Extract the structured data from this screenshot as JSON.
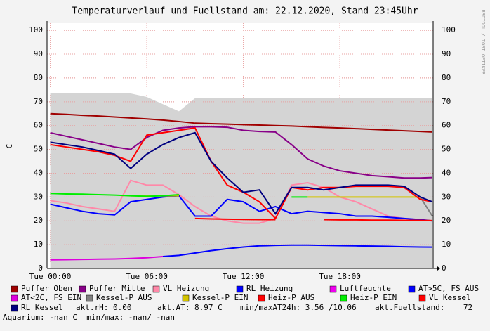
{
  "chart_data": {
    "type": "line",
    "title": "Temperaturverlauf und Fuellstand am: 22.12.2020, Stand 23:45Uhr",
    "ylabel": "C",
    "watermark": "RRDTOOL / TOBI OETIKER",
    "xlim": [
      -0.2,
      23.8
    ],
    "ylim": [
      0,
      103
    ],
    "yticks": [
      0,
      10,
      20,
      30,
      40,
      50,
      60,
      70,
      80,
      90,
      100
    ],
    "xticks": [
      {
        "value": 0,
        "label": "Tue 00:00"
      },
      {
        "value": 6,
        "label": "Tue 06:00"
      },
      {
        "value": 12,
        "label": "Tue 12:00"
      },
      {
        "value": 18,
        "label": "Tue 18:00"
      }
    ],
    "grid": true,
    "x": [
      0,
      1,
      2,
      3,
      4,
      5,
      6,
      7,
      8,
      9,
      10,
      11,
      12,
      13,
      14,
      15,
      16,
      17,
      18,
      19,
      20,
      21,
      22,
      23,
      23.75
    ],
    "series": [
      {
        "type": "area",
        "color": "#d4d4d4",
        "values": [
          73.5,
          73.5,
          73.5,
          73.5,
          73.5,
          73.5,
          72,
          69,
          66,
          71.5,
          71.5,
          71.5,
          71.5,
          71.5,
          71.5,
          71.5,
          71.5,
          71.5,
          71.5,
          71.5,
          71.5,
          71.5,
          71.5,
          71.5,
          71.5
        ]
      },
      {
        "name": "Puffer Oben",
        "color": "#a00000",
        "values": [
          65,
          64.7,
          64.3,
          64,
          63.6,
          63.2,
          62.8,
          62.3,
          61.7,
          61,
          60.8,
          60.6,
          60.4,
          60.2,
          60,
          59.8,
          59.5,
          59.2,
          59,
          58.7,
          58.4,
          58.1,
          57.8,
          57.5,
          57.3
        ]
      },
      {
        "name": "Puffer Mitte",
        "color": "#880088",
        "values": [
          57,
          55.5,
          54,
          52.5,
          51,
          50,
          55,
          58,
          59,
          59.5,
          59.5,
          59.3,
          58,
          57.5,
          57.3,
          52,
          46,
          43,
          41,
          40,
          39,
          38.5,
          38,
          38,
          38.2
        ]
      },
      {
        "name": "VL Heizung",
        "color": "#ff88a8",
        "values": [
          28.5,
          27.5,
          26,
          25,
          24,
          37,
          35,
          35,
          31,
          26,
          22,
          20,
          19,
          19,
          21,
          35,
          36,
          34,
          30,
          28,
          25,
          22,
          21,
          20.5,
          20
        ]
      },
      {
        "name": "RL Heizung",
        "color": "#0000ff",
        "values": [
          27,
          25.5,
          24,
          23,
          22.5,
          28,
          29,
          30,
          30.5,
          22,
          22,
          29,
          28,
          24,
          26,
          23,
          24,
          23.5,
          23,
          22,
          22,
          21.5,
          21,
          20.5,
          20
        ]
      },
      {
        "name": "Luftfeuchte",
        "color": "#ee00ee",
        "values": [
          null,
          null,
          null,
          null,
          null,
          null,
          null,
          null,
          null,
          null,
          null,
          null,
          null,
          null,
          null,
          null,
          null,
          null,
          null,
          null,
          null,
          null,
          null,
          null,
          null
        ]
      },
      {
        "name": "AT>5C, FS AUS",
        "color": "#0000ff",
        "values": [
          null,
          null,
          null,
          null,
          null,
          null,
          null,
          5,
          5.5,
          6.5,
          7.5,
          8.3,
          9,
          9.5,
          9.7,
          9.8,
          9.8,
          9.7,
          9.6,
          9.5,
          9.4,
          9.3,
          9.1,
          9,
          8.97
        ]
      },
      {
        "name": "AT<2C, FS EIN",
        "color": "#dd00dd",
        "values": [
          3.6,
          3.7,
          3.8,
          3.9,
          4,
          4.2,
          4.5,
          5,
          null,
          null,
          null,
          null,
          null,
          null,
          null,
          null,
          null,
          null,
          null,
          null,
          null,
          null,
          null,
          null,
          null
        ]
      },
      {
        "name": "Kessel-P AUS",
        "color": "#808080",
        "values": [
          null,
          null,
          null,
          null,
          null,
          null,
          null,
          null,
          null,
          null,
          null,
          null,
          null,
          null,
          null,
          null,
          null,
          null,
          null,
          null,
          null,
          null,
          null,
          30,
          22
        ]
      },
      {
        "name": "Kessel-P EIN",
        "color": "#d4c400",
        "values": [
          null,
          null,
          null,
          null,
          null,
          30.5,
          30.5,
          30.5,
          30.5,
          null,
          null,
          null,
          null,
          null,
          null,
          null,
          30,
          30,
          30,
          30,
          30,
          30,
          30,
          30,
          null
        ]
      },
      {
        "name": "Heiz-P AUS",
        "color": "#ff0000",
        "values": [
          null,
          null,
          null,
          null,
          null,
          null,
          null,
          null,
          null,
          21,
          20.8,
          20.7,
          20.6,
          20.5,
          20.5,
          null,
          null,
          20.5,
          20.4,
          20.4,
          20.3,
          20.3,
          20.2,
          20.2,
          20.1
        ]
      },
      {
        "name": "Heiz-P EIN",
        "color": "#00ee00",
        "values": [
          31.5,
          31.3,
          31.2,
          31,
          30.8,
          30.5,
          30.3,
          30.5,
          31,
          null,
          null,
          null,
          null,
          null,
          null,
          30,
          30,
          null,
          null,
          null,
          null,
          null,
          null,
          null,
          null
        ]
      },
      {
        "name": "VL Kessel",
        "color": "#ff0000",
        "values": [
          52,
          51,
          50,
          49,
          47.5,
          45,
          56,
          57,
          58,
          59,
          45,
          35,
          32,
          28,
          21,
          34,
          33,
          34,
          34,
          34.5,
          34.5,
          34.5,
          34,
          29,
          28
        ]
      },
      {
        "name": "RL Kessel",
        "color": "#000080",
        "values": [
          53,
          52,
          51,
          49.5,
          48,
          42,
          48,
          52,
          55,
          57,
          45,
          38,
          32,
          33,
          23,
          34,
          34,
          33,
          34,
          35,
          35,
          35,
          34.5,
          30,
          28
        ]
      }
    ],
    "notes": [
      "akt.rH: 0.00",
      "akt.AT: 8.97 C",
      "min/maxAT24h: 3.56 /10.06",
      "akt.Fuellstand:    72"
    ],
    "footer": "Aquarium: -nan C  min/max: -nan/ -nan"
  }
}
